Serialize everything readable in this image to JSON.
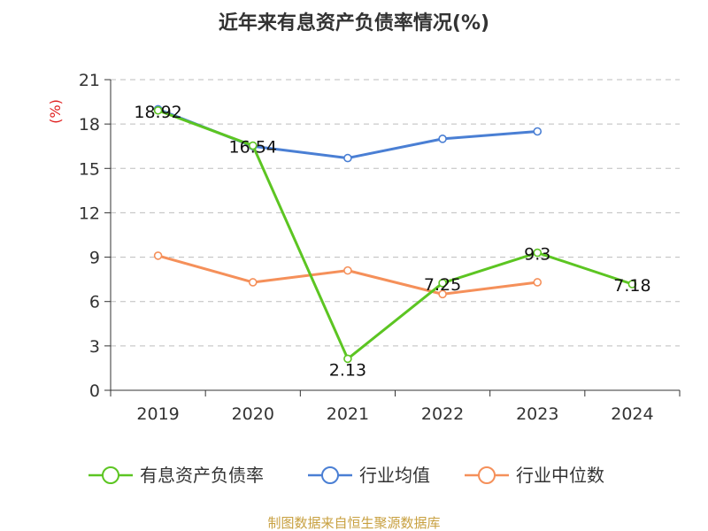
{
  "chart_data": {
    "type": "line",
    "title": "近年来有息资产负债率情况(%)",
    "ylabel": "(%)",
    "xlabel": "",
    "ylim": [
      0,
      21
    ],
    "yticks": [
      0,
      3,
      6,
      9,
      12,
      15,
      18,
      21
    ],
    "grid": true,
    "legend_position": "bottom",
    "categories": [
      "2019",
      "2020",
      "2021",
      "2022",
      "2023",
      "2024"
    ],
    "series": [
      {
        "name": "有息资产负债率",
        "color": "#5cc522",
        "values": [
          18.92,
          16.54,
          2.13,
          7.25,
          9.3,
          7.18
        ],
        "labels": [
          "18.92",
          "16.54",
          "2.13",
          "7.25",
          "9.3",
          "7.18"
        ]
      },
      {
        "name": "行业均值",
        "color": "#4a7fd4",
        "values": [
          19.0,
          16.5,
          15.7,
          17.0,
          17.5,
          null
        ]
      },
      {
        "name": "行业中位数",
        "color": "#f5905a",
        "values": [
          9.1,
          7.3,
          8.1,
          6.5,
          7.3,
          null
        ]
      }
    ],
    "source": "制图数据来自恒生聚源数据库"
  }
}
